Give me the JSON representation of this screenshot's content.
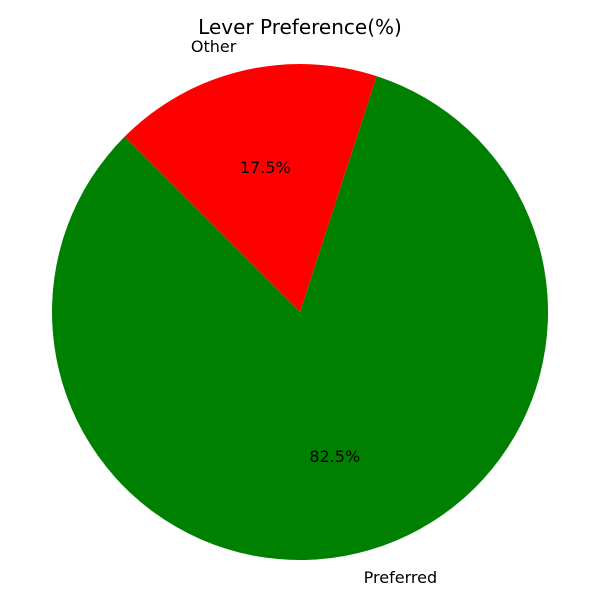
{
  "chart_data": {
    "type": "pie",
    "title": "Lever Preference(%)",
    "slices": [
      {
        "label": "Preferred",
        "value": 82.5,
        "pct_label": "82.5%",
        "color": "#008000"
      },
      {
        "label": "Other",
        "value": 17.5,
        "pct_label": "17.5%",
        "color": "#ff0000"
      }
    ],
    "start_angle_deg": 135,
    "direction": "counterclockwise",
    "legend": "none"
  }
}
